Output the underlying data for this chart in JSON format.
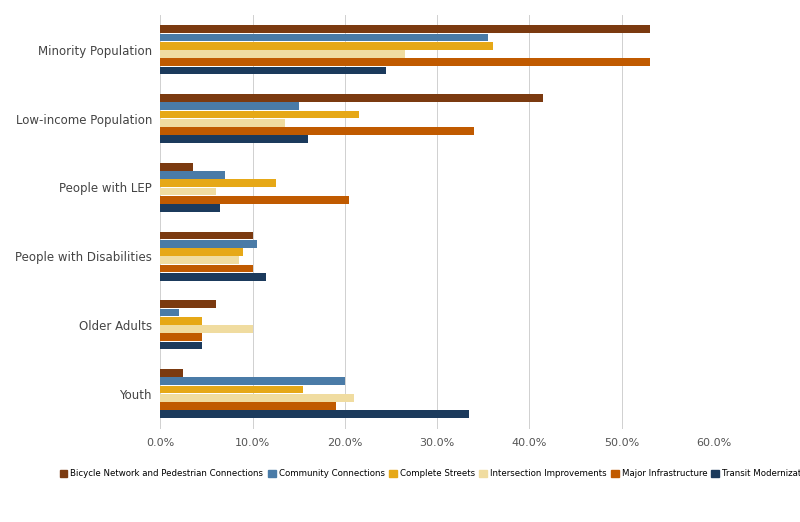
{
  "categories": [
    "Minority Population",
    "Low-income Population",
    "People with LEP",
    "People with Disabilities",
    "Older Adults",
    "Youth"
  ],
  "series": [
    {
      "name": "Bicycle Network and Pedestrian Connections",
      "color": "#7B3A10",
      "values": [
        53.0,
        41.5,
        3.5,
        10.0,
        6.0,
        2.5
      ]
    },
    {
      "name": "Community Connections",
      "color": "#4A7BA7",
      "values": [
        35.5,
        15.0,
        7.0,
        10.5,
        2.0,
        20.0
      ]
    },
    {
      "name": "Complete Streets",
      "color": "#E6A817",
      "values": [
        36.0,
        21.5,
        12.5,
        9.0,
        4.5,
        15.5
      ]
    },
    {
      "name": "Intersection Improvements",
      "color": "#F0DCA0",
      "values": [
        26.5,
        13.5,
        6.0,
        8.5,
        10.0,
        21.0
      ]
    },
    {
      "name": "Major Infrastructure",
      "color": "#C05A00",
      "values": [
        53.0,
        34.0,
        20.5,
        10.0,
        4.5,
        19.0
      ]
    },
    {
      "name": "Transit Modernization",
      "color": "#1B3A5C",
      "values": [
        24.5,
        16.0,
        6.5,
        11.5,
        4.5,
        33.5
      ]
    }
  ],
  "xlim": [
    0,
    60
  ],
  "xticks": [
    0,
    10,
    20,
    30,
    40,
    50,
    60
  ],
  "xticklabels": [
    "0.0%",
    "10.0%",
    "20.0%",
    "30.0%",
    "40.0%",
    "50.0%",
    "60.0%"
  ],
  "background_color": "#ffffff",
  "grid_color": "#d0d0d0"
}
